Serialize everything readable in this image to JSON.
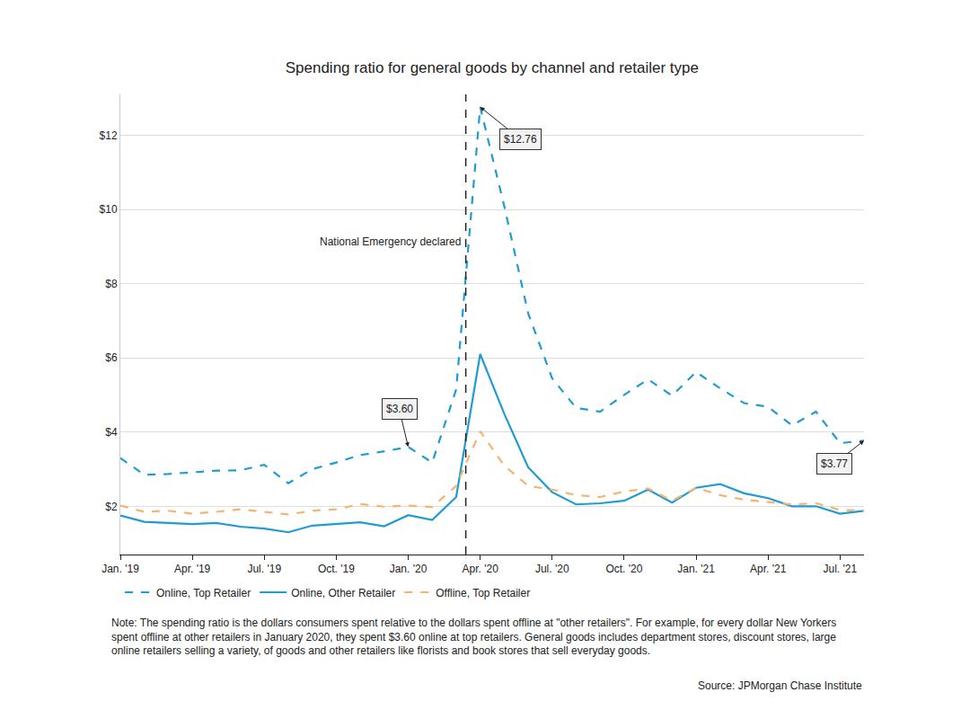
{
  "chart_data": {
    "type": "line",
    "title": "Spending ratio for general goods by channel and retailer type",
    "categories": [
      "Jan. '19",
      null,
      null,
      "Apr. '19",
      null,
      null,
      "Jul. '19",
      null,
      null,
      "Oct. '19",
      null,
      null,
      "Jan. '20",
      null,
      null,
      "Apr. '20",
      null,
      null,
      "Jul. '20",
      null,
      null,
      "Oct. '20",
      null,
      null,
      "Jan. '21",
      null,
      null,
      "Apr. '21",
      null,
      null,
      "Jul. '21",
      null
    ],
    "series": [
      {
        "name": "Online, Top Retailer",
        "color": "#1f9bd6",
        "line_style": "dashed",
        "values": [
          3.3,
          2.85,
          2.87,
          2.92,
          2.96,
          2.97,
          3.12,
          2.62,
          3.0,
          3.18,
          3.38,
          3.48,
          3.6,
          3.18,
          5.15,
          12.76,
          10.1,
          7.2,
          5.45,
          4.65,
          4.55,
          5.0,
          5.42,
          4.98,
          5.62,
          5.18,
          4.78,
          4.68,
          4.18,
          4.55,
          3.7,
          3.77
        ]
      },
      {
        "name": "Online, Other Retailer",
        "color": "#1f9bd6",
        "line_style": "solid",
        "values": [
          1.75,
          1.58,
          1.55,
          1.52,
          1.55,
          1.45,
          1.4,
          1.3,
          1.48,
          1.53,
          1.57,
          1.46,
          1.76,
          1.63,
          2.25,
          6.1,
          4.5,
          3.05,
          2.38,
          2.05,
          2.08,
          2.15,
          2.45,
          2.1,
          2.5,
          2.6,
          2.35,
          2.22,
          2.0,
          2.0,
          1.8,
          1.88
        ]
      },
      {
        "name": "Offline, Top Retailer",
        "color": "#f6b36d",
        "line_style": "dashed",
        "values": [
          2.02,
          1.85,
          1.88,
          1.8,
          1.85,
          1.92,
          1.85,
          1.78,
          1.88,
          1.92,
          2.06,
          1.99,
          2.02,
          1.98,
          2.55,
          4.02,
          3.1,
          2.55,
          2.45,
          2.3,
          2.25,
          2.4,
          2.48,
          2.15,
          2.5,
          2.3,
          2.18,
          2.12,
          2.05,
          2.08,
          1.9,
          1.88
        ]
      }
    ],
    "ylim": [
      0.7,
      13.1
    ],
    "yticks": [
      {
        "value": 2,
        "label": "$2"
      },
      {
        "value": 4,
        "label": "$4"
      },
      {
        "value": 6,
        "label": "$6"
      },
      {
        "value": 8,
        "label": "$8"
      },
      {
        "value": 10,
        "label": "$10"
      },
      {
        "value": 12,
        "label": "$12"
      }
    ],
    "grid": true,
    "legend": "bottom",
    "vline": {
      "x": 14.4,
      "label": "National Emergency declared"
    },
    "annotations": [
      {
        "text": "$12.76",
        "x": 15,
        "y": 12.76
      },
      {
        "text": "$3.60",
        "x": 12,
        "y": 3.6
      },
      {
        "text": "$3.77",
        "x": 31,
        "y": 3.77
      }
    ],
    "note": [
      "Note: The spending ratio is the dollars consumers spent relative to the dollars spent offline at \"other retailers\". For example, for every dollar New Yorkers",
      "spent offline at other retailers in January 2020, they spent $3.60 online at top retailers. General goods includes department stores, discount stores, large",
      "online retailers selling a variety, of goods and other retailers like florists and book stores that sell everyday goods."
    ],
    "source": "Source: JPMorgan Chase Institute"
  }
}
